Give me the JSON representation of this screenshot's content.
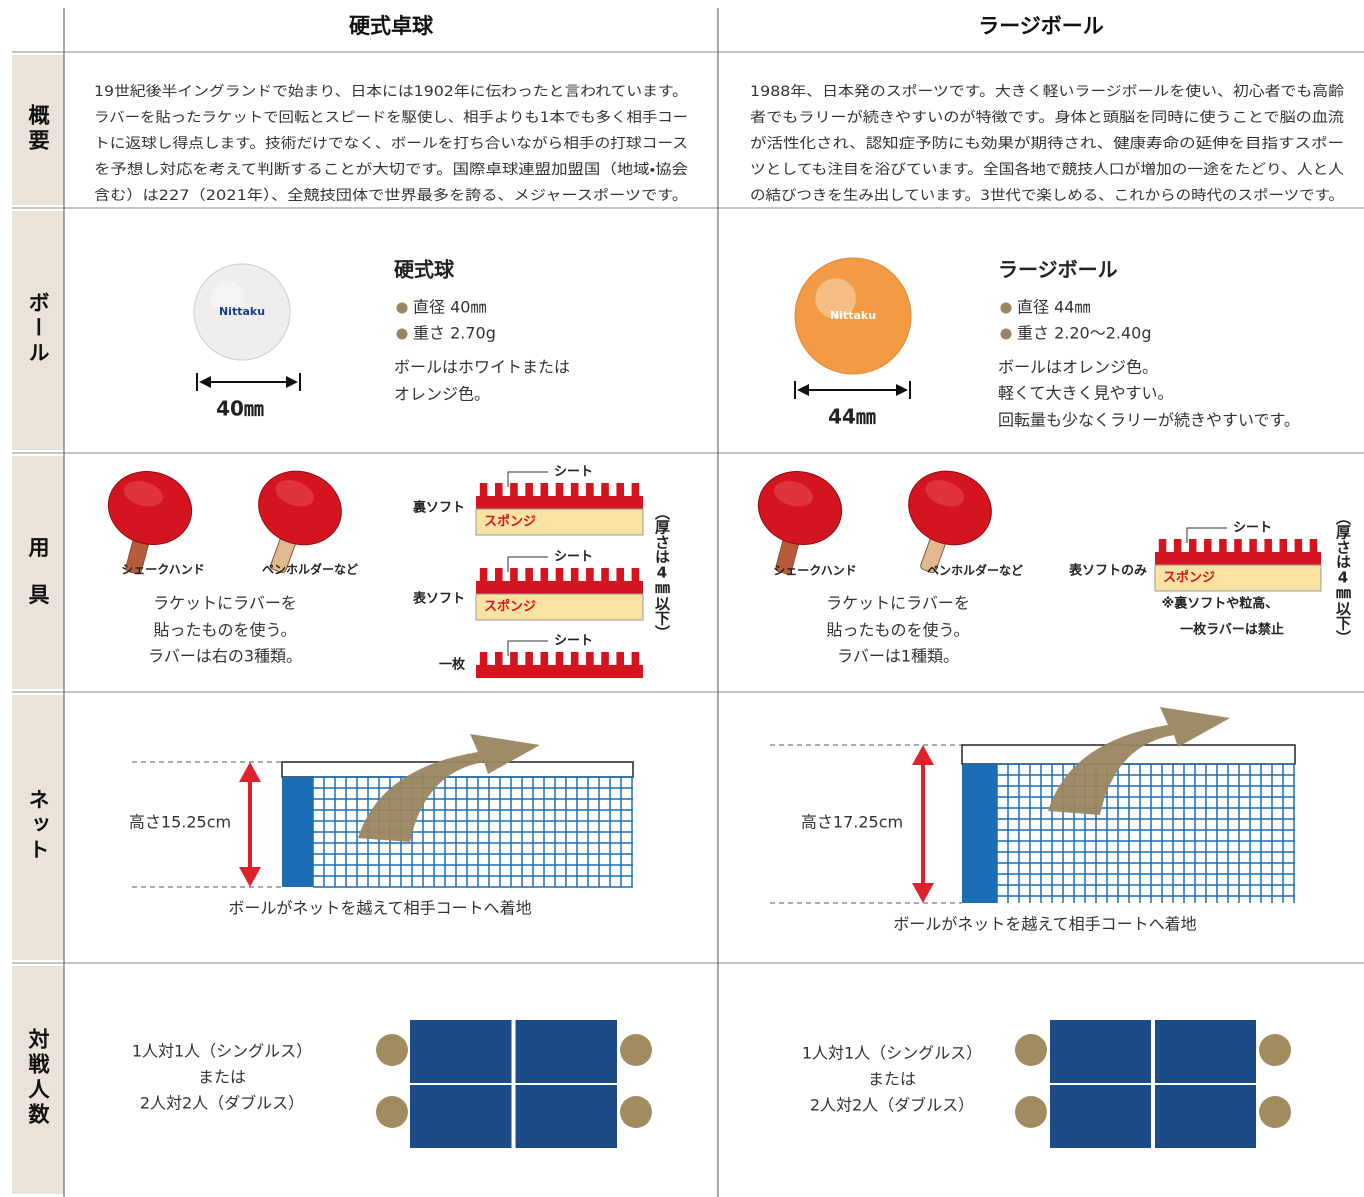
{
  "columns": [
    "硬式卓球",
    "ラージボール"
  ],
  "row_labels": [
    "概要",
    "ボール",
    "用具",
    "ネット",
    "対戦人数"
  ],
  "sections": [
    {
      "overview": [
        "19世紀後半イングランドで始まり、日本には1902年に伝わったと言われています。",
        "ラバーを貼ったラケットで回転とスピードを駆使し、相手よりも1本でも多く相手コー",
        "トに返球し得点します。技術だけでなく、ボールを打ち合いながら相手の打球コース",
        "を予想し対応を考えて判断することが大切です。国際卓球連盟加盟国（地域・協会",
        "含む）は227（2021年）、全競技団体で世界最多を誇る、メジャースポーツです。"
      ],
      "ball": {
        "name": "硬式球",
        "brand": "Nittaku",
        "specs": [
          "直径 40㎜",
          "重さ 2.70g"
        ],
        "description": [
          "ボールはホワイトまたは",
          "オレンジ色。"
        ],
        "diameter": "40㎜"
      },
      "equipment": {
        "grips": [
          "シェークハンド",
          "ペンホルダーなど"
        ],
        "description": [
          "ラケットにラバーを",
          "貼ったものを使う。",
          "ラバーは右の3種類。"
        ],
        "rubbers": [
          "裏ソフト",
          "表ソフト",
          "一枚"
        ],
        "sheet": "シート",
        "sponge": "スポンジ",
        "thickness": "（厚さは4㎜以下）"
      },
      "net": {
        "height": "高さ15.25cm",
        "caption": "ボールがネットを越えて相手コートへ着地"
      },
      "players": [
        "1人対1人（シングルス）",
        "または",
        "2人対2人（ダブルス）"
      ]
    },
    {
      "overview": [
        "1988年、日本発のスポーツです。大きく軽いラージボールを使い、初心者でも高齢",
        "者でもラリーが続きやすいのが特徴です。身体と頭脳を同時に使うことで脳の血流",
        "が活性化され、認知症予防にも効果が期待され、健康寿命の延伸を目指すスポー",
        "ツとしても注目を浴びています。全国各地で競技人口が増加の一途をたどり、人と人",
        "の結びつきを生み出しています。3世代で楽しめる、これからの時代のスポーツです。"
      ],
      "ball": {
        "name": "ラージボール",
        "brand": "Nittaku",
        "specs": [
          "直径 44㎜",
          "重さ 2.20〜2.40g"
        ],
        "description": [
          "ボールはオレンジ色。",
          "軽くて大きく見やすい。",
          "回転量も少なくラリーが続きやすいです。"
        ],
        "diameter": "44㎜"
      },
      "equipment": {
        "grips": [
          "シェークハンド",
          "ペンホルダーなど"
        ],
        "description": [
          "ラケットにラバーを",
          "貼ったものを使う。",
          "ラバーは1種類。"
        ],
        "rubbers": [
          "表ソフトのみ"
        ],
        "restriction": [
          "※裏ソフトや粒高、",
          "一枚ラバーは禁止"
        ],
        "sheet": "シート",
        "sponge": "スポンジ",
        "thickness": "（厚さは4㎜以下）"
      },
      "net": {
        "height": "高さ17.25cm",
        "caption": "ボールがネットを越えて相手コートへ着地"
      },
      "players": [
        "1人対1人（シングルス）",
        "または",
        "2人対2人（ダブルス）"
      ]
    }
  ]
}
